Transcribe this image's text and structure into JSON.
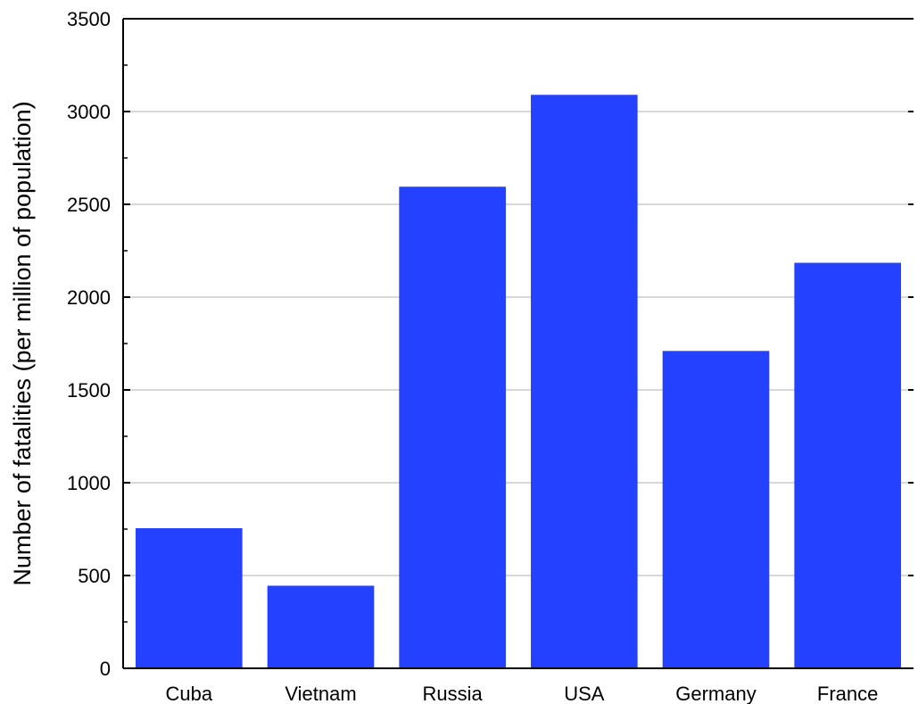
{
  "chart_data": {
    "type": "bar",
    "title": "",
    "xlabel": "",
    "ylabel": "Number of fatalities (per million of population)",
    "categories": [
      "Cuba",
      "Vietnam",
      "Russia",
      "USA",
      "Germany",
      "France"
    ],
    "values": [
      755,
      445,
      2595,
      3090,
      1710,
      2185
    ],
    "ylim": [
      0,
      3500
    ],
    "yticks": [
      0,
      500,
      1000,
      1500,
      2000,
      2500,
      3000,
      3500
    ],
    "ytick_labels": [
      "0",
      "500",
      "1000",
      "1500",
      "2000",
      "2500",
      "3000",
      "3500"
    ],
    "grid": true,
    "legend": "none",
    "bar_color": "#2341ff"
  }
}
